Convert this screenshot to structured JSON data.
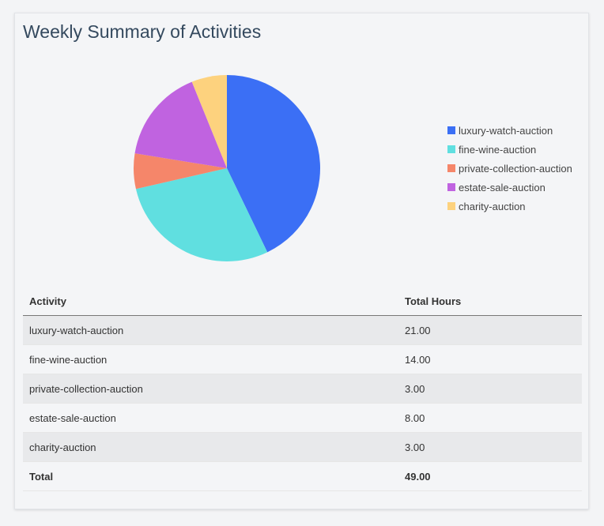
{
  "title": "Weekly Summary of Activities",
  "chart_data": {
    "type": "pie",
    "categories": [
      "luxury-watch-auction",
      "fine-wine-auction",
      "private-collection-auction",
      "estate-sale-auction",
      "charity-auction"
    ],
    "values": [
      21,
      14,
      3,
      8,
      3
    ],
    "colors": [
      "#3b6ff5",
      "#60dfe0",
      "#f5866a",
      "#c063e0",
      "#fdd27e"
    ],
    "legend_position": "right"
  },
  "table": {
    "headers": [
      "Activity",
      "Total Hours"
    ],
    "rows": [
      [
        "luxury-watch-auction",
        "21.00"
      ],
      [
        "fine-wine-auction",
        "14.00"
      ],
      [
        "private-collection-auction",
        "3.00"
      ],
      [
        "estate-sale-auction",
        "8.00"
      ],
      [
        "charity-auction",
        "3.00"
      ]
    ],
    "total": [
      "Total",
      "49.00"
    ]
  }
}
